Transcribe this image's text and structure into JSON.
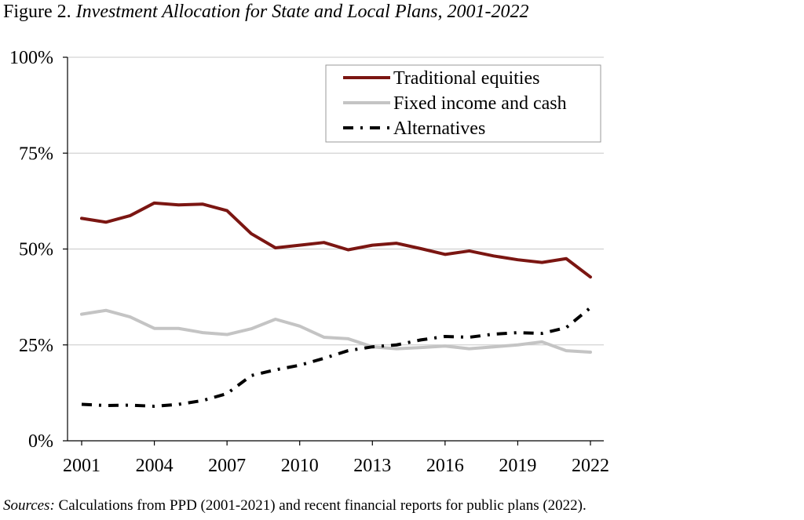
{
  "figure": {
    "number_label": "Figure 2.",
    "title": "Investment Allocation for State and Local Plans, 2001-2022"
  },
  "sources": {
    "label": "Sources:",
    "text": "Calculations from PPD (2001-2021) and recent financial reports for public plans (2022)."
  },
  "colors": {
    "traditional_equities": "#7b1612",
    "fixed_income_and_cash": "#c4c4c4",
    "alternatives": "#000000",
    "gridline": "#c8c8c8",
    "axis": "#000000"
  },
  "chart_data": {
    "type": "line",
    "title": "",
    "xlabel": "",
    "ylabel": "",
    "x": [
      2001,
      2002,
      2003,
      2004,
      2005,
      2006,
      2007,
      2008,
      2009,
      2010,
      2011,
      2012,
      2013,
      2014,
      2015,
      2016,
      2017,
      2018,
      2019,
      2020,
      2021,
      2022
    ],
    "xlim": [
      2001,
      2022
    ],
    "x_ticks": [
      2001,
      2004,
      2007,
      2010,
      2013,
      2016,
      2019,
      2022
    ],
    "x_tick_labels": [
      "2001",
      "2004",
      "2007",
      "2010",
      "2013",
      "2016",
      "2019",
      "2022"
    ],
    "ylim": [
      0,
      100
    ],
    "y_ticks": [
      0,
      25,
      50,
      75,
      100
    ],
    "y_tick_labels": [
      "0%",
      "25%",
      "50%",
      "75%",
      "100%"
    ],
    "grid": "horizontal",
    "legend_position": "top-right",
    "series": [
      {
        "name": "Traditional equities",
        "style": "solid",
        "color": "#7b1612",
        "values": [
          58.0,
          57.0,
          58.7,
          62.0,
          61.5,
          61.7,
          60.0,
          54.0,
          50.3,
          51.0,
          51.7,
          49.8,
          51.0,
          51.5,
          50.1,
          48.6,
          49.5,
          48.2,
          47.2,
          46.5,
          47.5,
          42.7
        ]
      },
      {
        "name": "Fixed income and cash",
        "style": "solid",
        "color": "#c4c4c4",
        "values": [
          33.0,
          34.0,
          32.3,
          29.3,
          29.3,
          28.2,
          27.7,
          29.2,
          31.7,
          29.9,
          27.0,
          26.6,
          24.5,
          24.0,
          24.3,
          24.7,
          24.0,
          24.5,
          25.0,
          25.8,
          23.5,
          23.1
        ]
      },
      {
        "name": "Alternatives",
        "style": "dash-dot",
        "color": "#000000",
        "values": [
          9.5,
          9.2,
          9.3,
          9.0,
          9.5,
          10.5,
          12.3,
          17.0,
          18.5,
          19.7,
          21.5,
          23.5,
          24.5,
          25.0,
          26.3,
          27.2,
          27.0,
          27.8,
          28.2,
          28.0,
          29.5,
          34.7
        ]
      }
    ]
  }
}
